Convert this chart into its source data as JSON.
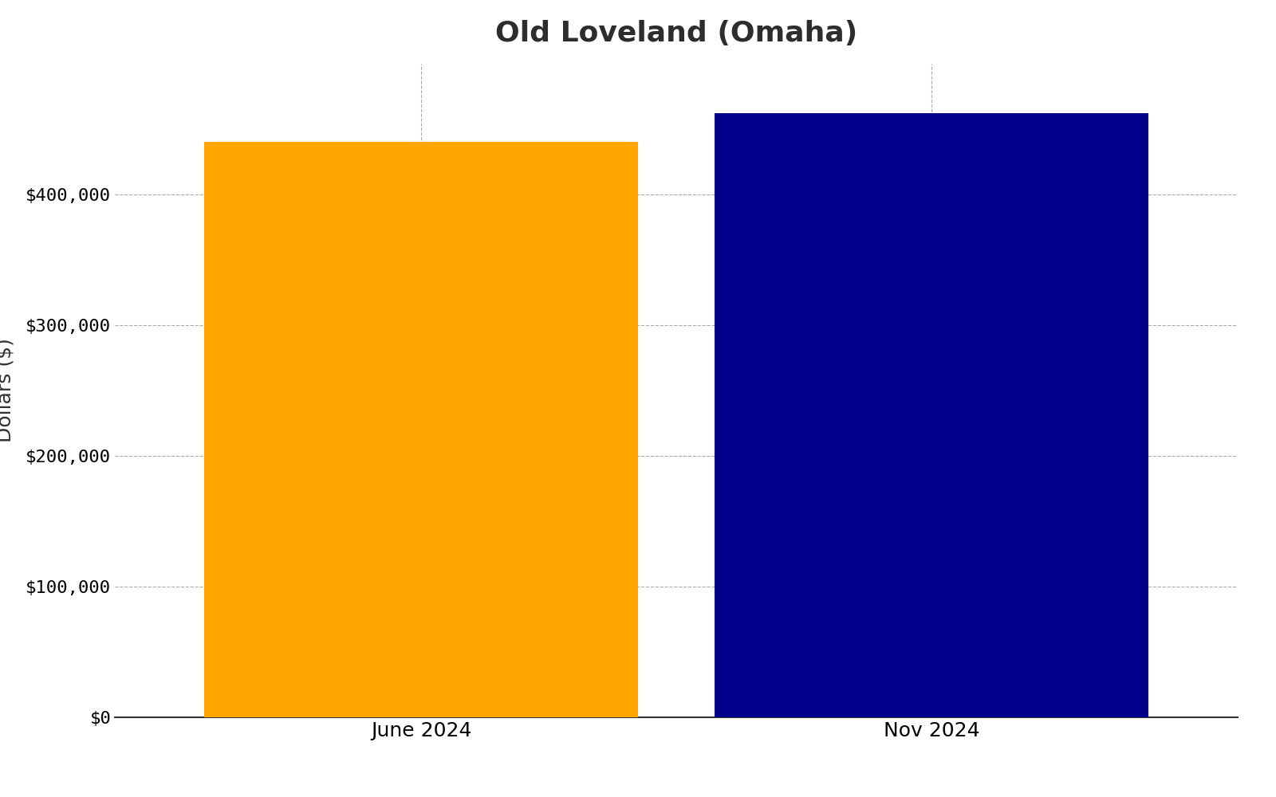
{
  "title": "Old Loveland (Omaha)",
  "categories": [
    "June 2024",
    "Nov 2024"
  ],
  "values": [
    440000,
    462000
  ],
  "bar_colors": [
    "#FFA500",
    "#00008B"
  ],
  "ylabel": "Dollars ($)",
  "ylim": [
    0,
    500000
  ],
  "yticks": [
    0,
    100000,
    200000,
    300000,
    400000
  ],
  "ytick_labels": [
    "$0",
    "$100,000",
    "$200,000",
    "$300,000",
    "$400,000"
  ],
  "title_fontsize": 26,
  "label_fontsize": 18,
  "tick_fontsize": 16,
  "background_color": "#ffffff",
  "grid_color": "#aaaaaa",
  "title_color": "#2d2d2d",
  "bar_width": 0.85
}
